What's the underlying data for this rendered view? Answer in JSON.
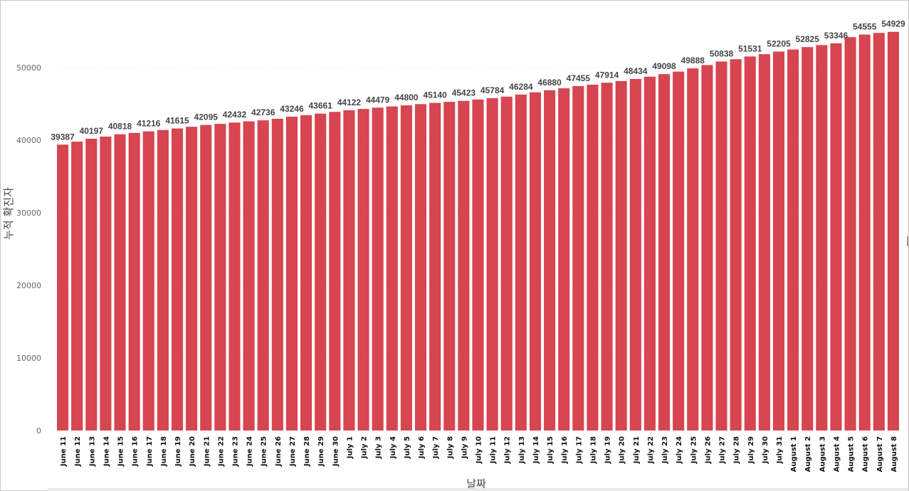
{
  "chart_data": {
    "type": "bar",
    "xlabel": "날짜",
    "ylabel": "누적 확진자",
    "ylim": [
      0,
      56000
    ],
    "yticks": [
      0,
      10000,
      20000,
      30000,
      40000,
      50000
    ],
    "grid": true,
    "bar_color": "#d64550",
    "categories": [
      "June 11",
      "June 12",
      "June 13",
      "June 14",
      "June 15",
      "June 16",
      "June 17",
      "June 18",
      "June 19",
      "June 20",
      "June 21",
      "June 22",
      "June 23",
      "June 24",
      "June 25",
      "June 26",
      "June 27",
      "June 28",
      "June 29",
      "June 30",
      "July 1",
      "July 2",
      "July 3",
      "July 4",
      "July 5",
      "July 6",
      "July 7",
      "July 8",
      "July 9",
      "July 10",
      "July 11",
      "July 12",
      "July 13",
      "July 14",
      "July 15",
      "July 16",
      "July 17",
      "July 18",
      "July 19",
      "July 20",
      "July 21",
      "July 22",
      "July 23",
      "July 24",
      "July 25",
      "July 26",
      "July 27",
      "July 28",
      "July 29",
      "July 30",
      "July 31",
      "August 1",
      "August 2",
      "August 3",
      "August 4",
      "August 5",
      "August 6",
      "August 7",
      "August 8"
    ],
    "values": [
      39387,
      39800,
      40197,
      40500,
      40818,
      41000,
      41216,
      41400,
      41615,
      41850,
      42095,
      42250,
      42432,
      42600,
      42736,
      42950,
      43246,
      43450,
      43661,
      43900,
      44122,
      44300,
      44479,
      44650,
      44800,
      44970,
      45140,
      45280,
      45423,
      45600,
      45784,
      46000,
      46284,
      46600,
      46880,
      47150,
      47455,
      47650,
      47914,
      48150,
      48434,
      48750,
      49098,
      49450,
      49888,
      50350,
      50838,
      51150,
      51531,
      51850,
      52205,
      52500,
      52825,
      53100,
      53346,
      54200,
      54555,
      54780,
      54929
    ],
    "data_labels": [
      "39387",
      "",
      "40197",
      "",
      "40818",
      "",
      "41216",
      "",
      "41615",
      "",
      "42095",
      "",
      "42432",
      "",
      "42736",
      "",
      "43246",
      "",
      "43661",
      "",
      "44122",
      "",
      "44479",
      "",
      "44800",
      "",
      "45140",
      "",
      "45423",
      "",
      "45784",
      "",
      "46284",
      "",
      "46880",
      "",
      "47455",
      "",
      "47914",
      "",
      "48434",
      "",
      "49098",
      "",
      "49888",
      "",
      "50838",
      "",
      "51531",
      "",
      "52205",
      "",
      "52825",
      "",
      "53346",
      "",
      "54555",
      "",
      "54929"
    ]
  }
}
